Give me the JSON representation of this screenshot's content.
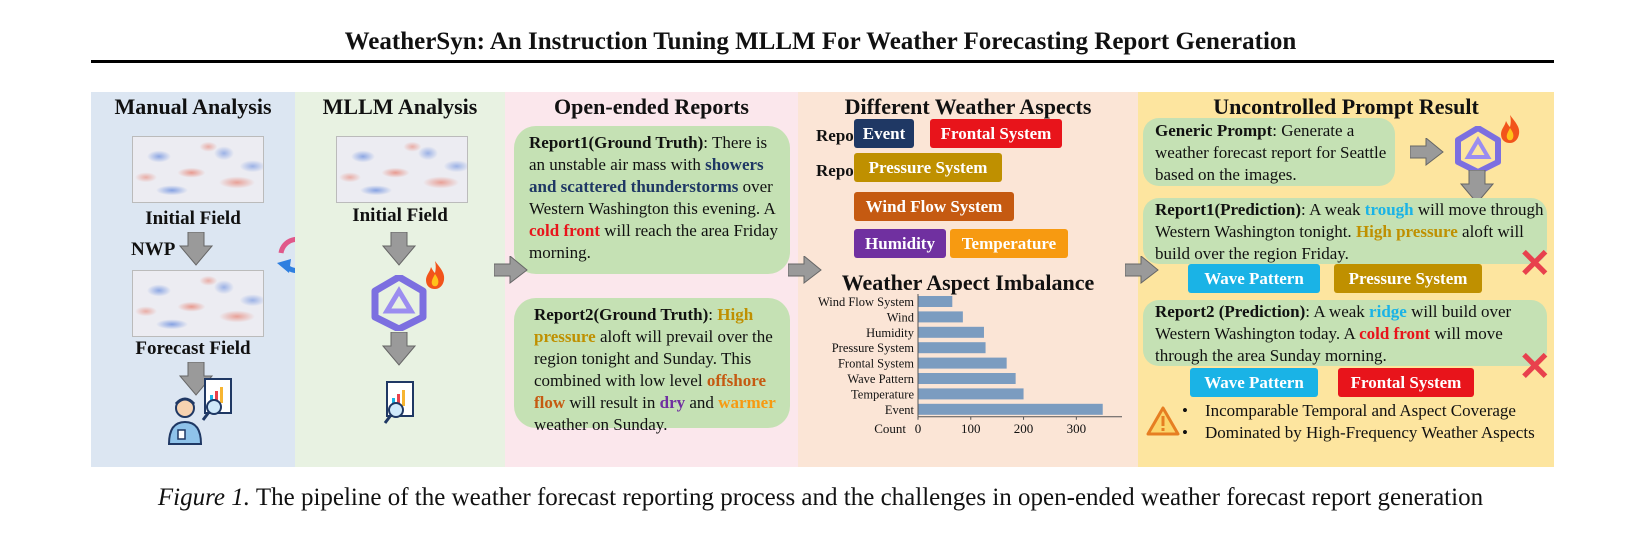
{
  "title": "WeatherSyn: An Instruction Tuning MLLM For Weather Forecasting Report Generation",
  "colors": {
    "navy": "#1f3864",
    "red": "#e8141b",
    "gold": "#bf9000",
    "brown": "#c55a11",
    "purple": "#7030a0",
    "orange": "#f79a11",
    "cyan": "#1ab3e6",
    "green_bubble": "#c5e1b4",
    "bar": "#7b9cc0"
  },
  "manual": {
    "heading": "Manual Analysis",
    "initial": "Initial Field",
    "nwp": "NWP",
    "forecast": "Forecast Field",
    "icons": [
      "forecaster-icon",
      "report-analysis-icon"
    ]
  },
  "mllm": {
    "heading": "MLLM Analysis",
    "initial": "Initial Field",
    "icons": [
      "refresh-cycle-icon",
      "model-logo-icon",
      "fire-icon",
      "report-analysis-icon"
    ]
  },
  "reports": {
    "heading": "Open-ended Reports",
    "r1": [
      {
        "t": "Report1(Ground Truth)",
        "c": "bold"
      },
      {
        "t": ": There is an unstable air mass with ",
        "c": ""
      },
      {
        "t": "showers and scattered thunderstorms",
        "c": "navy"
      },
      {
        "t": " over Western Washington this evening. A ",
        "c": ""
      },
      {
        "t": "cold front",
        "c": "red"
      },
      {
        "t": " will reach the area Friday morning.",
        "c": ""
      }
    ],
    "r2": [
      {
        "t": "Report2(Ground Truth)",
        "c": "bold"
      },
      {
        "t": ": ",
        "c": ""
      },
      {
        "t": "High pressure",
        "c": "gold"
      },
      {
        "t": " aloft will prevail over the region tonight and Sunday. This combined with low level ",
        "c": ""
      },
      {
        "t": "offshore flow",
        "c": "brown"
      },
      {
        "t": " will result in ",
        "c": ""
      },
      {
        "t": "dry",
        "c": "purple"
      },
      {
        "t": " and ",
        "c": ""
      },
      {
        "t": "warmer",
        "c": "orange"
      },
      {
        "t": " weather on Sunday.",
        "c": ""
      }
    ]
  },
  "aspects": {
    "heading": "Different Weather Aspects",
    "report1_label": "Report1:",
    "report2_label": "Report2:",
    "r1_tags": [
      {
        "label": "Event",
        "color": "#1f3864"
      },
      {
        "label": "Frontal System",
        "color": "#e8141b"
      }
    ],
    "r2_tags": [
      {
        "label": "Pressure System",
        "color": "#bf9000"
      },
      {
        "label": "Wind Flow System",
        "color": "#c55a11"
      },
      {
        "label": "Humidity",
        "color": "#7030a0"
      },
      {
        "label": "Temperature",
        "color": "#f79a11"
      }
    ],
    "imbalance_heading": "Weather Aspect Imbalance"
  },
  "chart_data": {
    "type": "bar",
    "orientation": "horizontal",
    "categories": [
      "Wind Flow System",
      "Wind",
      "Humidity",
      "Pressure System",
      "Frontal System",
      "Wave Pattern",
      "Temperature",
      "Event"
    ],
    "values": [
      65,
      85,
      125,
      128,
      168,
      185,
      200,
      350
    ],
    "xlabel": "Count",
    "xticks": [
      0,
      100,
      200,
      300
    ],
    "xlim": [
      0,
      360
    ]
  },
  "uncontrolled": {
    "heading": "Uncontrolled Prompt Result",
    "prompt": [
      {
        "t": "Generic Prompt",
        "c": "bold"
      },
      {
        "t": ": Generate a weather forecast report for Seattle based on the images.",
        "c": ""
      }
    ],
    "p1": [
      {
        "t": "Report1(Prediction)",
        "c": "bold"
      },
      {
        "t": ": A weak ",
        "c": ""
      },
      {
        "t": "trough",
        "c": "cyan"
      },
      {
        "t": " will move through Western Washington tonight. ",
        "c": ""
      },
      {
        "t": "High pressure",
        "c": "gold"
      },
      {
        "t": " aloft will build over the region Friday.",
        "c": ""
      }
    ],
    "p1_tags": [
      {
        "label": "Wave Pattern",
        "color": "#1ab3e6"
      },
      {
        "label": "Pressure System",
        "color": "#bf9000"
      }
    ],
    "p2": [
      {
        "t": "Report2 (Prediction)",
        "c": "bold"
      },
      {
        "t": ": A weak ",
        "c": ""
      },
      {
        "t": "ridge",
        "c": "cyan"
      },
      {
        "t": " will build over Western Washington today. A ",
        "c": ""
      },
      {
        "t": "cold front",
        "c": "red"
      },
      {
        "t": " will move through the area Sunday morning.",
        "c": ""
      }
    ],
    "p2_tags": [
      {
        "label": "Wave Pattern",
        "color": "#1ab3e6"
      },
      {
        "label": "Frontal System",
        "color": "#e8141b"
      }
    ],
    "cross": "✕",
    "bullets": [
      "Incomparable Temporal and Aspect Coverage",
      "Dominated by High-Frequency Weather Aspects"
    ]
  },
  "caption_prefix": "Figure 1.",
  "caption": " The pipeline of the weather forecast reporting process and the challenges in open-ended weather forecast report generation"
}
